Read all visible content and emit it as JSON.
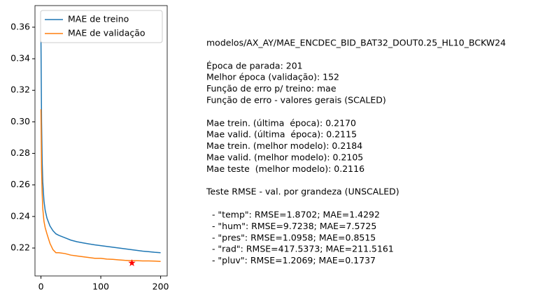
{
  "chart_data": {
    "type": "line",
    "x": [
      0,
      1,
      2,
      3,
      5,
      7,
      10,
      15,
      20,
      25,
      30,
      40,
      50,
      60,
      70,
      80,
      90,
      100,
      110,
      120,
      130,
      140,
      150,
      160,
      170,
      180,
      190,
      200
    ],
    "series": [
      {
        "name": "MAE de treino",
        "color": "#1f77b4",
        "values": [
          0.352,
          0.3,
          0.275,
          0.262,
          0.25,
          0.244,
          0.239,
          0.234,
          0.231,
          0.229,
          0.228,
          0.2265,
          0.225,
          0.224,
          0.2233,
          0.2226,
          0.222,
          0.2215,
          0.221,
          0.2205,
          0.22,
          0.2195,
          0.219,
          0.2185,
          0.218,
          0.2177,
          0.2173,
          0.217
        ]
      },
      {
        "name": "MAE de validação",
        "color": "#ff7f0e",
        "values": [
          0.308,
          0.27,
          0.255,
          0.245,
          0.237,
          0.233,
          0.229,
          0.223,
          0.219,
          0.217,
          0.217,
          0.2165,
          0.2155,
          0.215,
          0.2145,
          0.214,
          0.2135,
          0.2135,
          0.213,
          0.2128,
          0.2125,
          0.2122,
          0.212,
          0.212,
          0.2118,
          0.2118,
          0.2117,
          0.2115
        ]
      }
    ],
    "best_point": {
      "x": 152,
      "value": 0.2105,
      "color": "red"
    },
    "xlim": [
      -10,
      211
    ],
    "xticks": [
      0,
      100,
      200
    ],
    "ylim": [
      0.2023,
      0.3737
    ],
    "yticks": [
      0.22,
      0.24,
      0.26,
      0.28,
      {
        "value": 0.3,
        "label": "0.30"
      },
      0.32,
      0.34,
      0.36
    ],
    "legend": "upper left",
    "text_panel": [
      [
        "modelos/AX_AY/MAE_ENCDEC_BID_BAT32_DOUT0.25_HL10_BCKW24"
      ],
      [
        "Época de parada: 201",
        "Melhor época (validação): 152",
        "Função de erro p/ treino: mae",
        "Função de erro - valores gerais (SCALED)"
      ],
      [
        "Mae trein. (última  época): 0.2170",
        "Mae valid. (última  época): 0.2115",
        "Mae trein. (melhor modelo): 0.2184",
        "Mae valid. (melhor modelo): 0.2105",
        "Mae teste  (melhor modelo): 0.2116"
      ],
      [
        "Teste RMSE - val. por grandeza (UNSCALED)"
      ],
      [
        "  - \"temp\": RMSE=1.8702; MAE=1.4292",
        "  - \"hum\": RMSE=9.7238; MAE=7.5725",
        "  - \"pres\": RMSE=1.0958; MAE=0.8515",
        "  - \"rad\": RMSE=417.5373; MAE=211.5161",
        "  - \"pluv\": RMSE=1.2069; MAE=0.1737"
      ]
    ]
  }
}
